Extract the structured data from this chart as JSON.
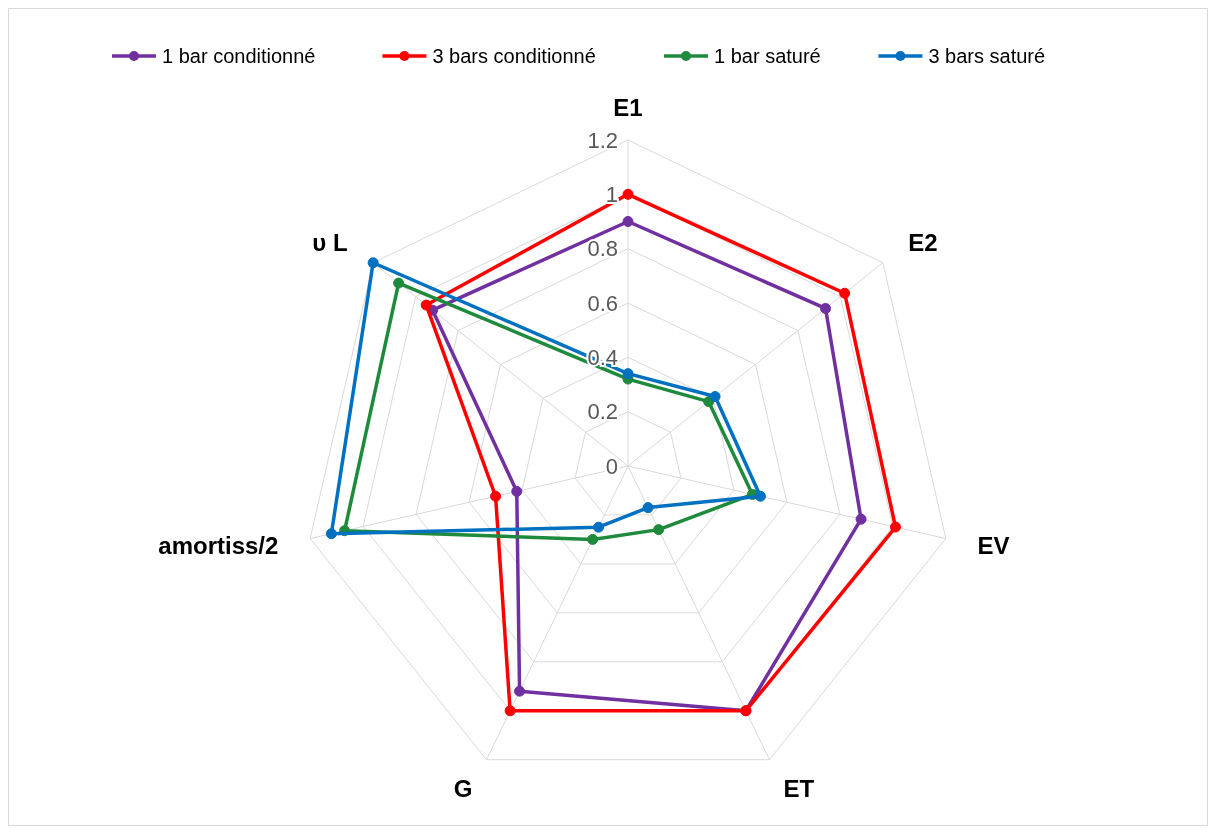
{
  "chart_data": {
    "type": "radar",
    "categories": [
      "E1",
      "E2",
      "EV",
      "ET",
      "G",
      "amortiss/2",
      "υ L"
    ],
    "ylim": [
      0,
      1.2
    ],
    "yticks": [
      0,
      0.2,
      0.4,
      0.6,
      0.8,
      1,
      1.2
    ],
    "grid": true,
    "legend": "top",
    "marker": "circle",
    "series": [
      {
        "name": "1 bar conditionné",
        "color": "#7030a0",
        "values": [
          0.9,
          0.93,
          0.88,
          1.0,
          0.92,
          0.42,
          0.92
        ]
      },
      {
        "name": "3 bars conditionné",
        "color": "#ff0000",
        "values": [
          1.0,
          1.02,
          1.01,
          1.0,
          1.0,
          0.5,
          0.95
        ]
      },
      {
        "name": "1 bar saturé",
        "color": "#1e8a3c",
        "values": [
          0.32,
          0.38,
          0.47,
          0.26,
          0.3,
          1.07,
          1.08
        ]
      },
      {
        "name": "3 bars saturé",
        "color": "#0070c0",
        "values": [
          0.34,
          0.41,
          0.5,
          0.17,
          0.25,
          1.12,
          1.2
        ]
      }
    ]
  }
}
